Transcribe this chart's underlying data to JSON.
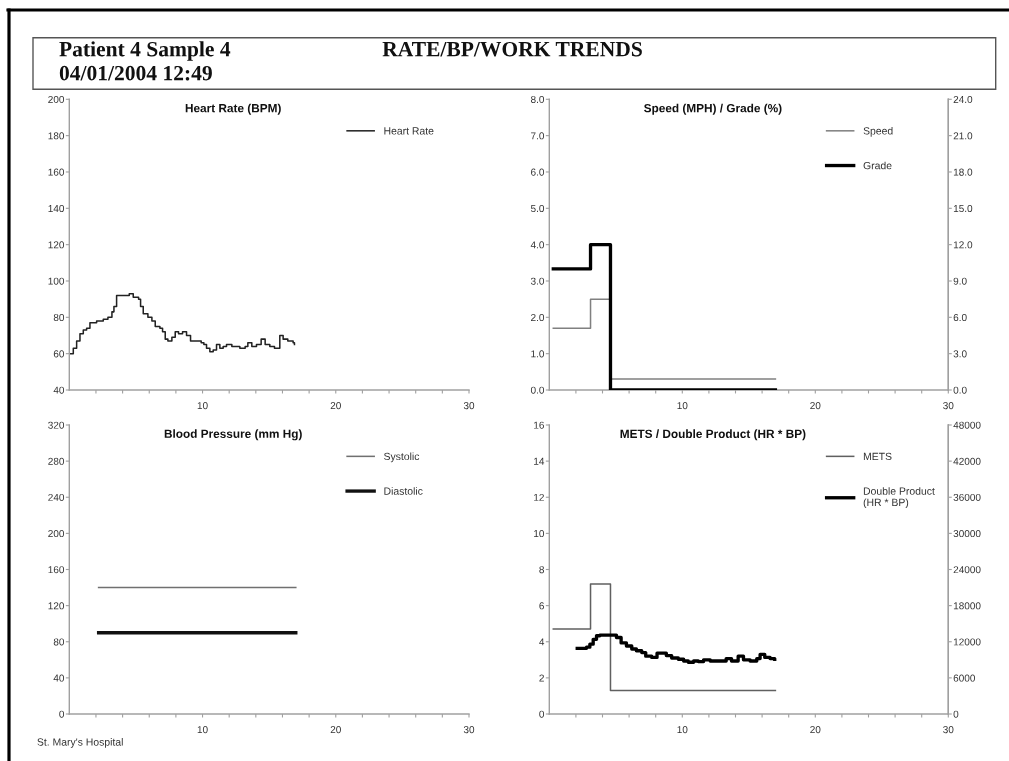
{
  "chart_data": [
    {
      "type": "other",
      "title": "RATE/BP/WORK TRENDS",
      "annotations": [
        "Patient 4 Sample 4",
        "04/01/2004 12:49"
      ]
    },
    {
      "type": "step",
      "title": "Heart Rate (BPM)",
      "series": [
        {
          "name": "Heart Rate",
          "color": "#222222",
          "x": [
            0.1,
            0.3,
            0.55,
            0.8,
            1.05,
            1.3,
            1.55,
            2.05,
            2.55,
            2.9,
            3.2,
            3.35,
            3.55,
            4.5,
            4.8,
            5.2,
            5.35,
            5.55,
            5.9,
            6.2,
            6.45,
            6.8,
            7.0,
            7.2,
            7.4,
            7.7,
            7.95,
            8.2,
            8.5,
            8.8,
            9.1,
            9.9,
            10.1,
            10.3,
            10.55,
            10.8,
            11.05,
            11.3,
            11.55,
            11.8,
            12.2,
            12.8,
            13.2,
            13.4,
            13.7,
            14.05,
            14.4,
            14.7,
            15.05,
            15.4,
            15.8,
            16.05,
            16.4,
            16.8,
            16.9
          ],
          "values": [
            60,
            63,
            67,
            71,
            73,
            74,
            77,
            78,
            79,
            80,
            83,
            86,
            92,
            93,
            91,
            90,
            86,
            82,
            80,
            78,
            75,
            74,
            72,
            68,
            67,
            69,
            72,
            71,
            72,
            70,
            67,
            66,
            65,
            63,
            61,
            62,
            65,
            63,
            64,
            65,
            64,
            63,
            64,
            66,
            64,
            65,
            68,
            65,
            64,
            63,
            70,
            68,
            67,
            66,
            65
          ]
        }
      ],
      "xlim": [
        0,
        30
      ],
      "xticks": [
        {
          "value": 2,
          "label": null
        },
        {
          "value": 4,
          "label": null
        },
        {
          "value": 6,
          "label": null
        },
        {
          "value": 8,
          "label": null
        },
        10,
        {
          "value": 12,
          "label": null
        },
        {
          "value": 14,
          "label": null
        },
        {
          "value": 16,
          "label": null
        },
        {
          "value": 18,
          "label": null
        },
        20,
        {
          "value": 22,
          "label": null
        },
        {
          "value": 24,
          "label": null
        },
        {
          "value": 26,
          "label": null
        },
        {
          "value": 28,
          "label": null
        },
        30
      ],
      "ylim": [
        40,
        200
      ],
      "yticks": [
        40,
        60,
        80,
        100,
        120,
        140,
        160,
        180,
        200
      ],
      "legend": "top right"
    },
    {
      "type": "step",
      "title": "Speed (MPH) / Grade (%)",
      "series": [
        {
          "name": "Speed",
          "color": "#808080",
          "x": [
            0.3,
            3.1,
            4.6,
            17.0
          ],
          "values": [
            1.7,
            2.5,
            0.3,
            0.3
          ]
        },
        {
          "name": "Grade",
          "color": "#000000",
          "axis": "y2",
          "x": [
            0.3,
            3.1,
            4.6,
            17.0
          ],
          "values": [
            10,
            12,
            0,
            0
          ]
        }
      ],
      "xlim": [
        0,
        30
      ],
      "xticks": [
        {
          "value": 2,
          "label": null
        },
        {
          "value": 4,
          "label": null
        },
        {
          "value": 6,
          "label": null
        },
        {
          "value": 8,
          "label": null
        },
        10,
        {
          "value": 12,
          "label": null
        },
        {
          "value": 14,
          "label": null
        },
        {
          "value": 16,
          "label": null
        },
        {
          "value": 18,
          "label": null
        },
        20,
        {
          "value": 22,
          "label": null
        },
        {
          "value": 24,
          "label": null
        },
        {
          "value": 26,
          "label": null
        },
        {
          "value": 28,
          "label": null
        },
        30
      ],
      "ylim": [
        0,
        8
      ],
      "yticks": [
        {
          "value": 0,
          "label": "0.0"
        },
        {
          "value": 1,
          "label": "1.0"
        },
        {
          "value": 2,
          "label": "2.0"
        },
        {
          "value": 3,
          "label": "3.0"
        },
        {
          "value": 4,
          "label": "4.0"
        },
        {
          "value": 5,
          "label": "5.0"
        },
        {
          "value": 6,
          "label": "6.0"
        },
        {
          "value": 7,
          "label": "7.0"
        },
        {
          "value": 8,
          "label": "8.0"
        }
      ],
      "y2lim": [
        0,
        24
      ],
      "y2ticks": [
        {
          "value": 0,
          "label": "0.0"
        },
        {
          "value": 3,
          "label": "3.0"
        },
        {
          "value": 6,
          "label": "6.0"
        },
        {
          "value": 9,
          "label": "9.0"
        },
        {
          "value": 12,
          "label": "12.0"
        },
        {
          "value": 15,
          "label": "15.0"
        },
        {
          "value": 18,
          "label": "18.0"
        },
        {
          "value": 21,
          "label": "21.0"
        },
        {
          "value": 24,
          "label": "24.0"
        }
      ],
      "legend": "top right"
    },
    {
      "type": "step",
      "title": "Blood Pressure (mm Hg)",
      "series": [
        {
          "name": "Systolic",
          "color": "#707070",
          "x": [
            2.2,
            17.0
          ],
          "values": [
            140,
            140
          ]
        },
        {
          "name": "Diastolic",
          "color": "#111111",
          "x": [
            2.2,
            17.0
          ],
          "values": [
            90,
            90
          ]
        }
      ],
      "xlim": [
        0,
        30
      ],
      "xticks": [
        {
          "value": 2,
          "label": null
        },
        {
          "value": 4,
          "label": null
        },
        {
          "value": 6,
          "label": null
        },
        {
          "value": 8,
          "label": null
        },
        10,
        {
          "value": 12,
          "label": null
        },
        {
          "value": 14,
          "label": null
        },
        {
          "value": 16,
          "label": null
        },
        {
          "value": 18,
          "label": null
        },
        20,
        {
          "value": 22,
          "label": null
        },
        {
          "value": 24,
          "label": null
        },
        {
          "value": 26,
          "label": null
        },
        {
          "value": 28,
          "label": null
        },
        30
      ],
      "ylim": [
        0,
        320
      ],
      "yticks": [
        0,
        40,
        80,
        120,
        160,
        200,
        240,
        280,
        320
      ],
      "legend": "top right",
      "annotations": [
        "St. Mary's Hospital"
      ]
    },
    {
      "type": "step",
      "title": "METS / Double Product (HR * BP)",
      "series": [
        {
          "name": "METS",
          "color": "#606060",
          "x": [
            0.3,
            3.1,
            4.6,
            17.0
          ],
          "values": [
            4.7,
            7.2,
            1.3,
            1.3
          ]
        },
        {
          "name": "Double Product\n(HR * BP)",
          "color": "#000000",
          "axis": "y2",
          "x": [
            2.1,
            2.8,
            3.05,
            3.3,
            3.55,
            3.8,
            5.05,
            5.4,
            5.8,
            6.2,
            6.55,
            6.95,
            7.25,
            7.7,
            8.1,
            8.8,
            9.2,
            9.7,
            10.1,
            10.45,
            10.85,
            11.2,
            11.6,
            12.1,
            13.3,
            13.7,
            14.2,
            14.6,
            15.1,
            15.6,
            15.85,
            16.2,
            16.6,
            16.95
          ],
          "values": [
            10900,
            11100,
            11600,
            12400,
            13000,
            13100,
            12700,
            11800,
            11300,
            10800,
            10500,
            10200,
            9600,
            9400,
            10100,
            9700,
            9300,
            9100,
            8800,
            8600,
            8800,
            8700,
            9000,
            8800,
            9200,
            8800,
            9600,
            9000,
            8800,
            9200,
            9900,
            9400,
            9200,
            9100
          ]
        }
      ],
      "xlim": [
        0,
        30
      ],
      "xticks": [
        {
          "value": 2,
          "label": null
        },
        {
          "value": 4,
          "label": null
        },
        {
          "value": 6,
          "label": null
        },
        {
          "value": 8,
          "label": null
        },
        10,
        {
          "value": 12,
          "label": null
        },
        {
          "value": 14,
          "label": null
        },
        {
          "value": 16,
          "label": null
        },
        {
          "value": 18,
          "label": null
        },
        20,
        {
          "value": 22,
          "label": null
        },
        {
          "value": 24,
          "label": null
        },
        {
          "value": 26,
          "label": null
        },
        {
          "value": 28,
          "label": null
        },
        30
      ],
      "ylim": [
        0,
        16
      ],
      "yticks": [
        0,
        2,
        4,
        6,
        8,
        10,
        12,
        14,
        16
      ],
      "y2lim": [
        0,
        48000
      ],
      "y2ticks": [
        0,
        6000,
        12000,
        18000,
        24000,
        30000,
        36000,
        42000,
        48000
      ],
      "legend": "top right"
    }
  ]
}
